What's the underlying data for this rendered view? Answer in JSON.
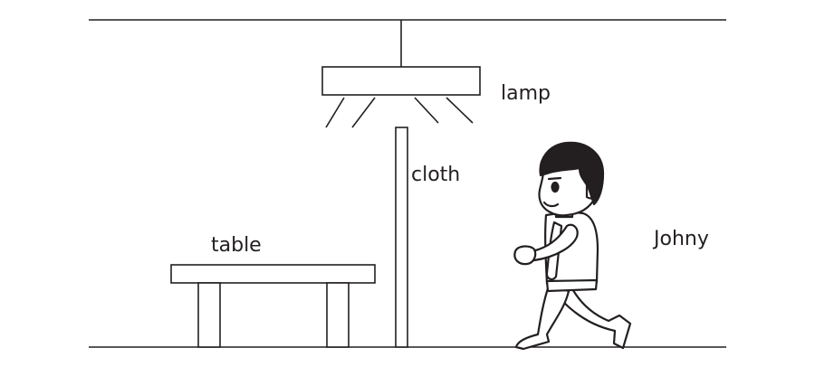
{
  "labels": {
    "lamp": "lamp",
    "cloth": "cloth",
    "table": "table",
    "johny": "Johny"
  },
  "colors": {
    "stroke": "#231f20",
    "fill": "#ffffff",
    "hair": "#231f20"
  }
}
